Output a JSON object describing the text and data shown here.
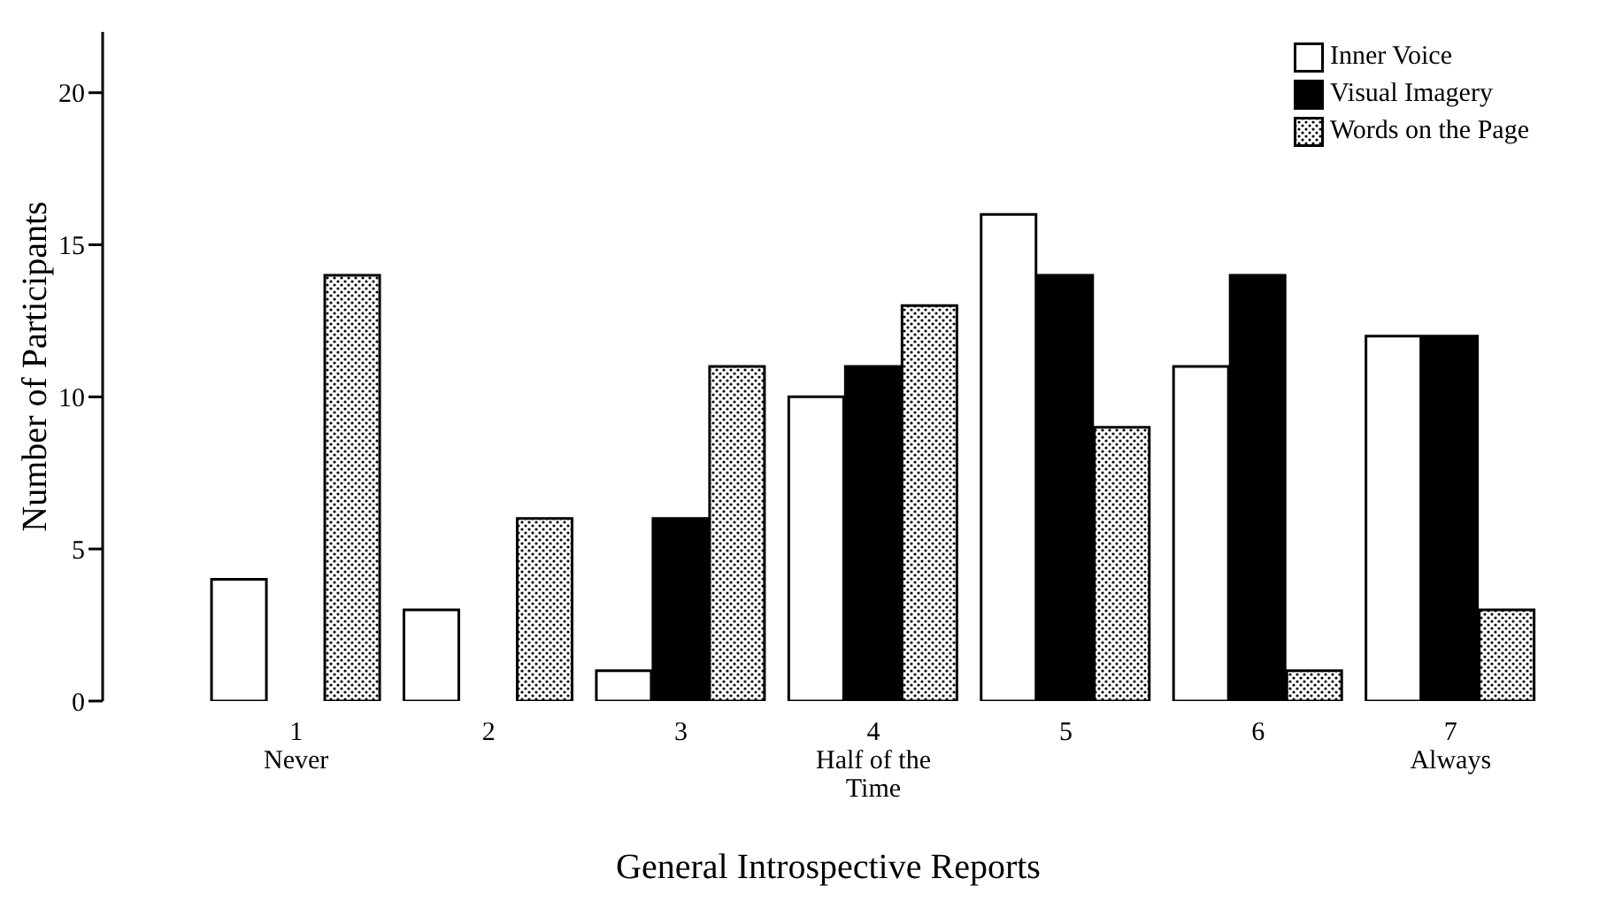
{
  "chart_data": {
    "type": "bar",
    "xlabel": "General Introspective Reports",
    "ylabel": "Number of Participants",
    "categories": [
      "1\nNever",
      "2",
      "3",
      "4\nHalf of the Time",
      "5",
      "6",
      "7\nAlways"
    ],
    "series": [
      {
        "name": "Inner Voice",
        "color": "#ffffff",
        "values": [
          4,
          3,
          1,
          10,
          16,
          11,
          12
        ]
      },
      {
        "name": "Visual Imagery",
        "color": "#000000",
        "values": [
          0,
          0,
          6,
          11,
          14,
          14,
          12
        ]
      },
      {
        "name": "Words on the Page",
        "color": "#000000",
        "values": [
          14,
          6,
          11,
          13,
          9,
          1,
          3
        ]
      }
    ],
    "ylim": [
      0,
      22
    ],
    "yticks": [
      0,
      5,
      10,
      15,
      20
    ],
    "grid": false,
    "legend": "top right"
  }
}
